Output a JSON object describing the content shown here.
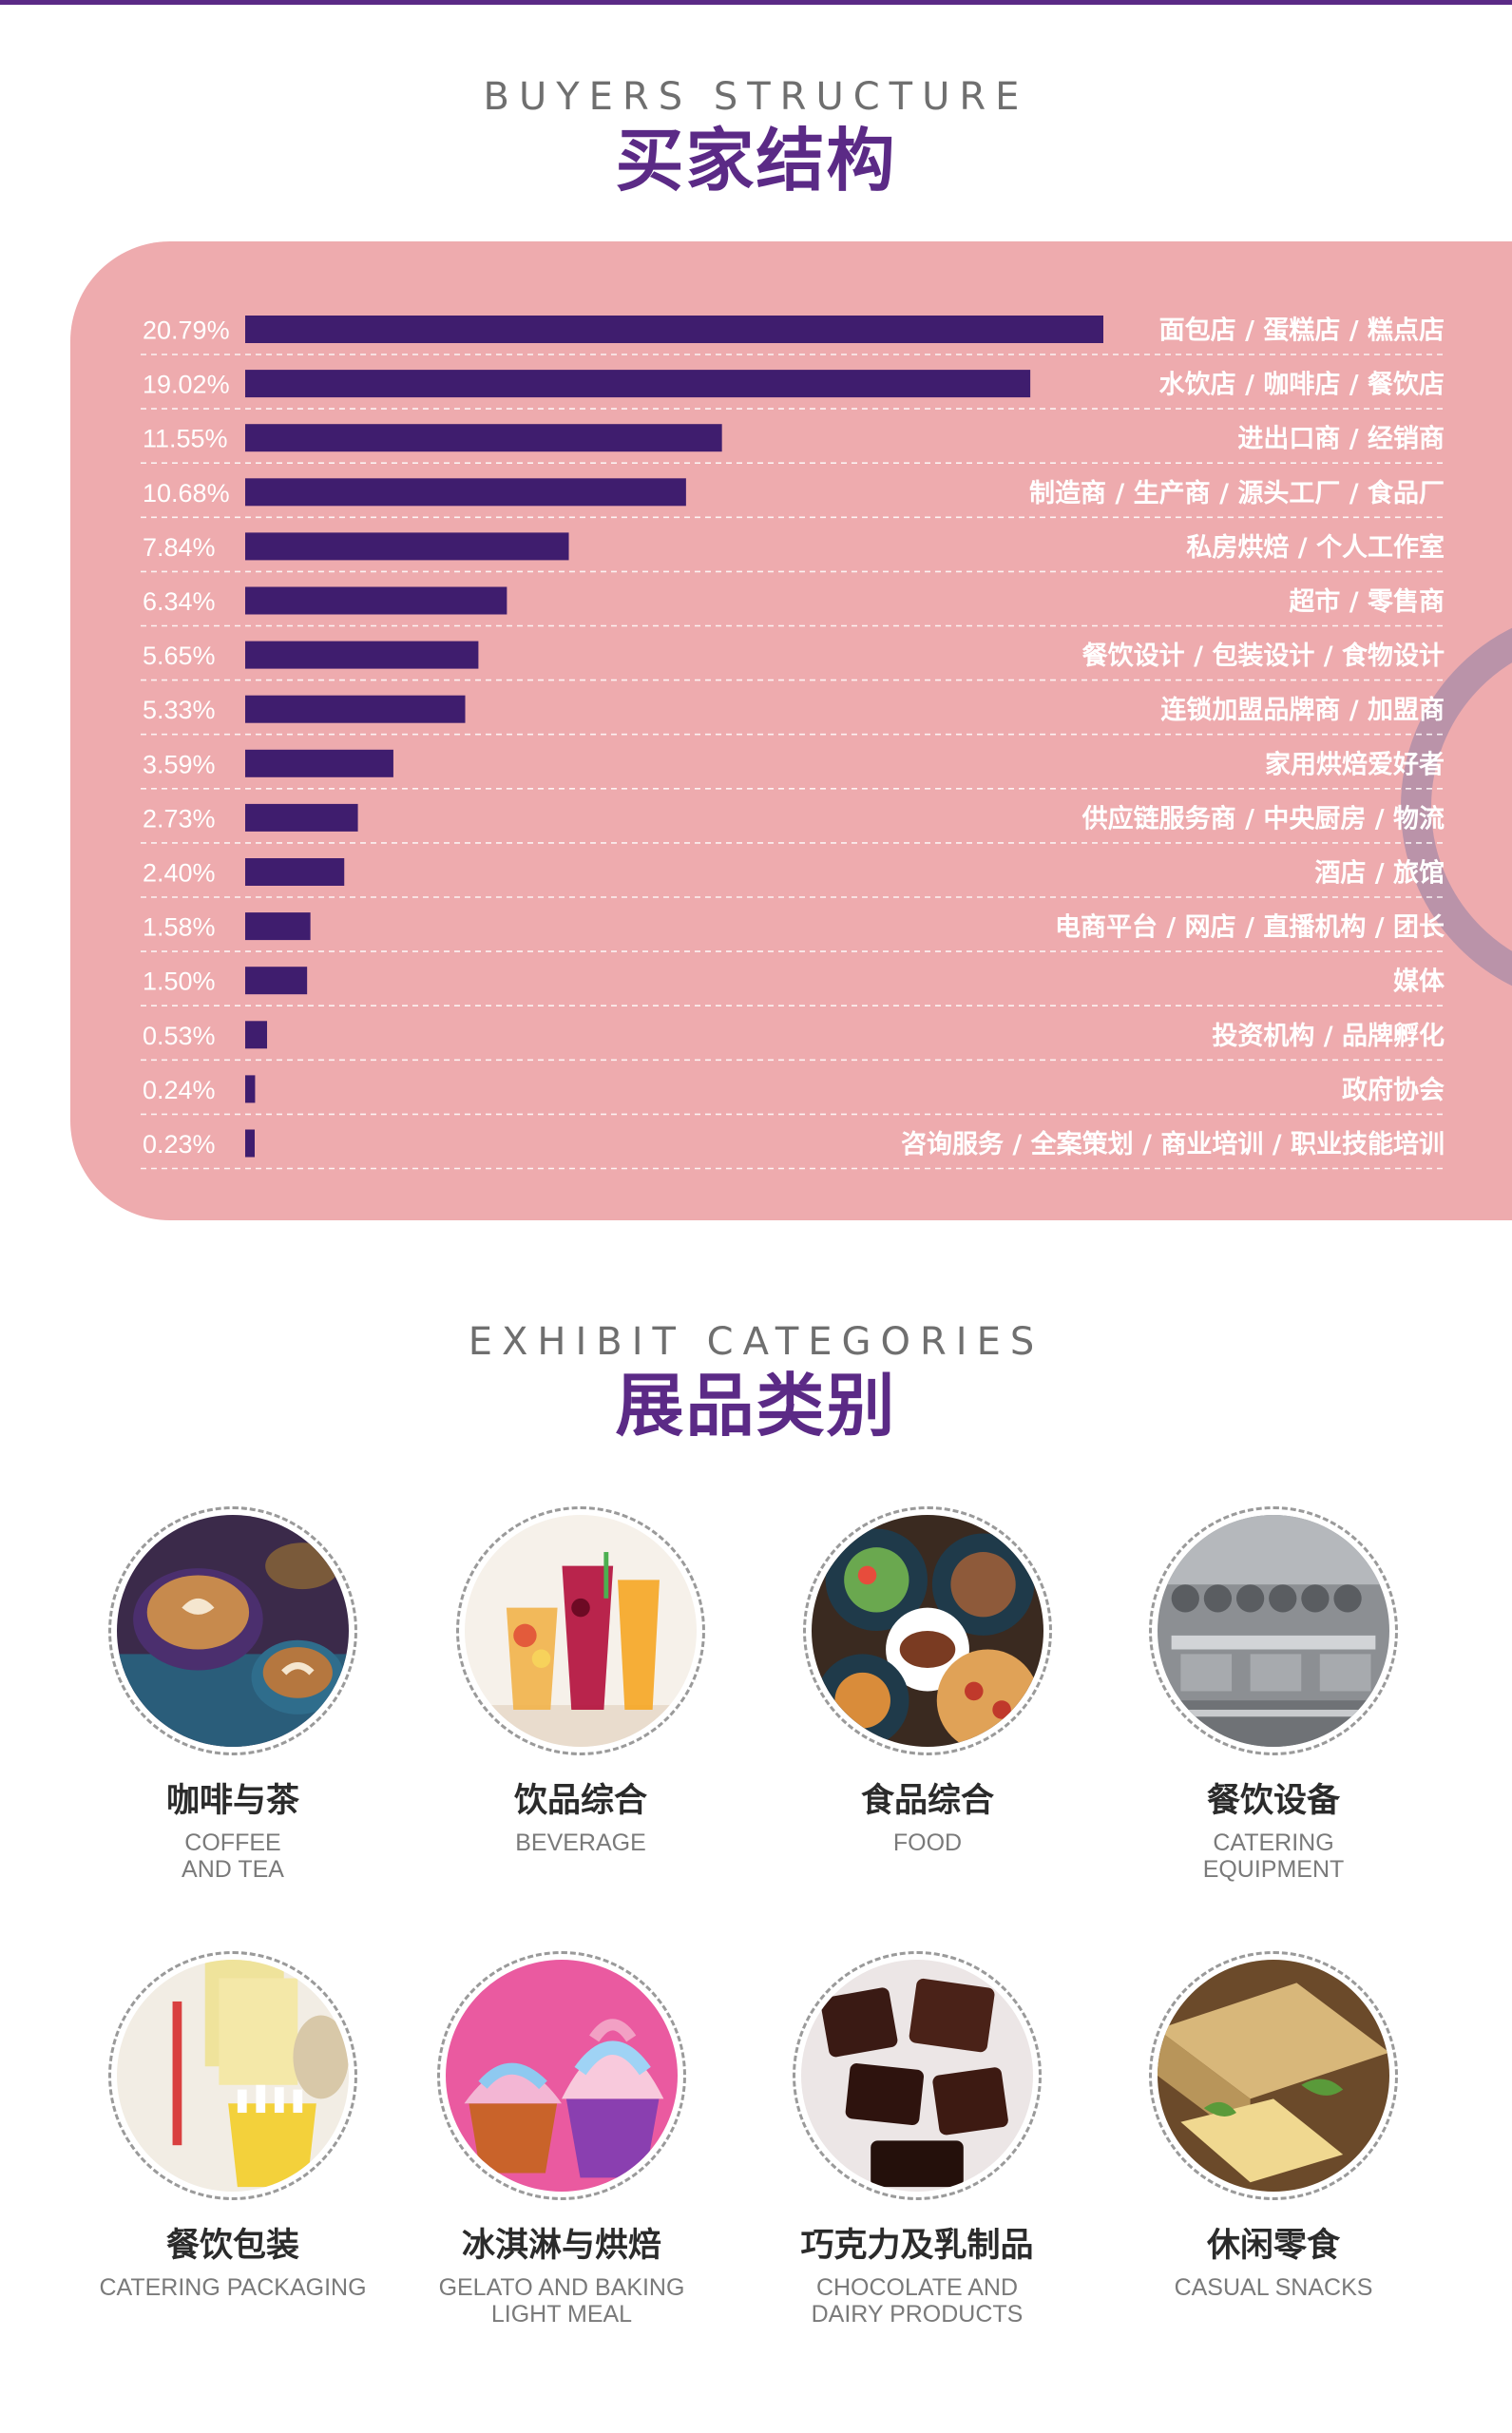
{
  "colors": {
    "accent": "#5b2a86",
    "panel": "#eeabae",
    "bar": "#3f1d6e",
    "ring": "#b08ea8"
  },
  "buyers": {
    "title_en": "BUYERS STRUCTURE",
    "title_zh": "买家结构"
  },
  "chart_data": {
    "type": "bar",
    "orientation": "horizontal",
    "categories": [
      "面包店 / 蛋糕店 / 糕点店",
      "水饮店 / 咖啡店 / 餐饮店",
      "进出口商 / 经销商",
      "制造商 / 生产商 / 源头工厂 / 食品厂",
      "私房烘焙 / 个人工作室",
      "超市 / 零售商",
      "餐饮设计 / 包装设计 / 食物设计",
      "连锁加盟品牌商 / 加盟商",
      "家用烘焙爱好者",
      "供应链服务商 / 中央厨房 / 物流",
      "酒店 / 旅馆",
      "电商平台 / 网店 / 直播机构 / 团长",
      "媒体",
      "投资机构 / 品牌孵化",
      "政府协会",
      "咨询服务 / 全案策划 / 商业培训 / 职业技能培训"
    ],
    "values": [
      20.79,
      19.02,
      11.55,
      10.68,
      7.84,
      6.34,
      5.65,
      5.33,
      3.59,
      2.73,
      2.4,
      1.58,
      1.5,
      0.53,
      0.24,
      0.23
    ],
    "value_labels": [
      "20.79%",
      "19.02%",
      "11.55%",
      "10.68%",
      "7.84%",
      "6.34%",
      "5.65%",
      "5.33%",
      "3.59%",
      "2.73%",
      "2.40%",
      "1.58%",
      "1.50%",
      "0.53%",
      "0.24%",
      "0.23%"
    ],
    "unit": "%",
    "xlim": [
      0,
      20.79
    ],
    "grid": "dashed row separators",
    "legend": "none"
  },
  "exhibit": {
    "title_en": "EXHIBIT CATEGORIES",
    "title_zh": "展品类别",
    "items": [
      {
        "zh": "咖啡与茶",
        "en": "COFFEE\nAND TEA",
        "icon": "coffee-photo-icon"
      },
      {
        "zh": "饮品综合",
        "en": "BEVERAGE",
        "icon": "beverage-photo-icon"
      },
      {
        "zh": "食品综合",
        "en": "FOOD",
        "icon": "food-photo-icon"
      },
      {
        "zh": "餐饮设备",
        "en": "CATERING\nEQUIPMENT",
        "icon": "equipment-photo-icon"
      },
      {
        "zh": "餐饮包装",
        "en": "CATERING PACKAGING",
        "icon": "packaging-photo-icon"
      },
      {
        "zh": "冰淇淋与烘焙",
        "en": "GELATO AND BAKING\nLIGHT MEAL",
        "icon": "cupcake-photo-icon"
      },
      {
        "zh": "巧克力及乳制品",
        "en": "CHOCOLATE AND\nDAIRY PRODUCTS",
        "icon": "chocolate-photo-icon"
      },
      {
        "zh": "休闲零食",
        "en": "CASUAL SNACKS",
        "icon": "snacks-photo-icon"
      }
    ]
  }
}
